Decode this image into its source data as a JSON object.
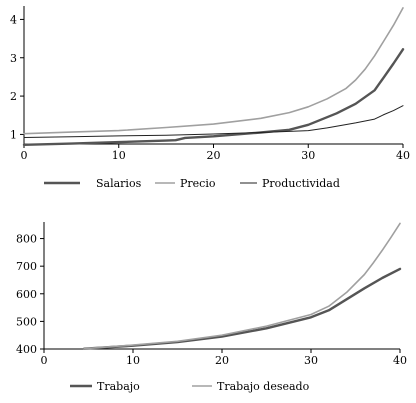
{
  "chart_data": [
    {
      "type": "line",
      "xlim": [
        0,
        40
      ],
      "ylim": [
        0.75,
        4.35
      ],
      "x_ticks": [
        0,
        10,
        20,
        30,
        40
      ],
      "y_ticks": [
        1,
        2,
        3,
        4
      ],
      "grid": false,
      "legend_placement": "bottom",
      "series": [
        {
          "name": "Salarios",
          "color": "#555555",
          "width": 2.4,
          "x": [
            0,
            5,
            10,
            15,
            16,
            17,
            20,
            25,
            28,
            30,
            33,
            35,
            37,
            38,
            39,
            40
          ],
          "y": [
            0.73,
            0.76,
            0.8,
            0.84,
            0.85,
            0.91,
            0.95,
            1.05,
            1.12,
            1.25,
            1.55,
            1.8,
            2.15,
            2.5,
            2.85,
            3.22
          ]
        },
        {
          "name": "Precio",
          "color": "#a0a0a0",
          "width": 1.6,
          "x": [
            0,
            5,
            10,
            15,
            20,
            25,
            28,
            30,
            32,
            34,
            35,
            36,
            37,
            38,
            39,
            40
          ],
          "y": [
            1.02,
            1.06,
            1.1,
            1.18,
            1.27,
            1.42,
            1.57,
            1.72,
            1.93,
            2.2,
            2.42,
            2.7,
            3.05,
            3.45,
            3.85,
            4.3
          ]
        },
        {
          "name": "Productividad",
          "color": "#222222",
          "width": 1.0,
          "x": [
            0,
            5,
            10,
            15,
            20,
            25,
            30,
            32,
            35,
            37,
            38,
            39,
            40
          ],
          "y": [
            0.92,
            0.94,
            0.96,
            0.98,
            1.01,
            1.05,
            1.1,
            1.17,
            1.3,
            1.4,
            1.52,
            1.62,
            1.75
          ]
        }
      ]
    },
    {
      "type": "line",
      "xlim": [
        0,
        40
      ],
      "ylim": [
        400,
        860
      ],
      "x_ticks": [
        0,
        10,
        20,
        30,
        40
      ],
      "y_ticks": [
        400,
        500,
        600,
        700,
        800
      ],
      "grid": false,
      "legend_placement": "bottom",
      "series": [
        {
          "name": "Trabajo",
          "color": "#555555",
          "width": 2.4,
          "x": [
            4.5,
            10,
            15,
            20,
            25,
            30,
            32,
            34,
            36,
            38,
            40
          ],
          "y": [
            401,
            412,
            425,
            445,
            475,
            515,
            540,
            580,
            620,
            657,
            690
          ]
        },
        {
          "name": "Trabajo deseado",
          "color": "#a0a0a0",
          "width": 1.6,
          "x": [
            4.5,
            10,
            15,
            20,
            25,
            30,
            32,
            34,
            36,
            37,
            38,
            39,
            40
          ],
          "y": [
            401,
            414,
            428,
            450,
            483,
            525,
            555,
            605,
            670,
            712,
            757,
            805,
            855
          ]
        }
      ]
    }
  ]
}
